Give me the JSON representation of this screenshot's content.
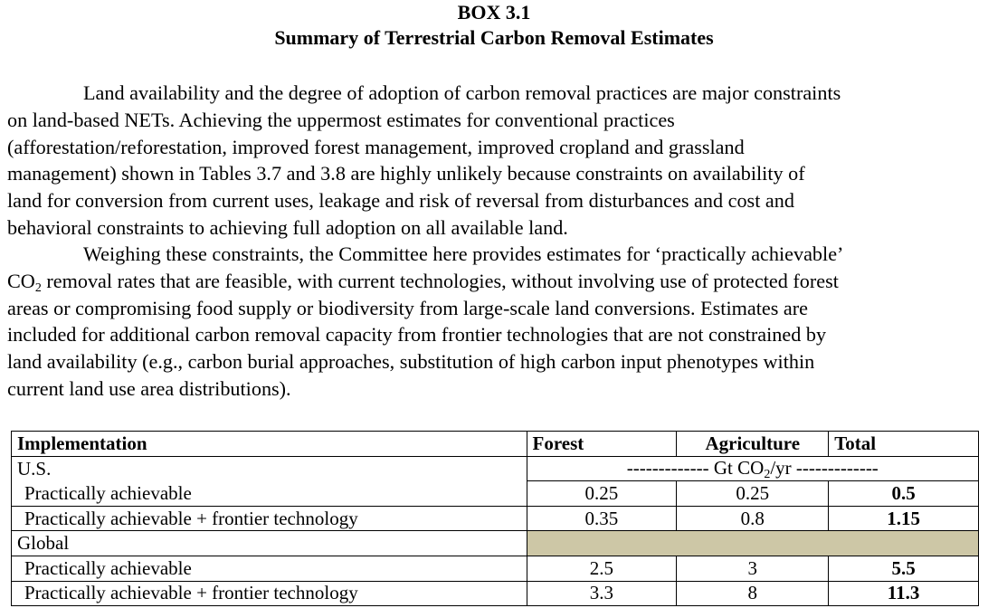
{
  "box": {
    "label": "BOX 3.1",
    "title": "Summary of Terrestrial Carbon Removal Estimates"
  },
  "paragraph1": {
    "lines": [
      "Land availability and the degree of adoption of carbon removal practices are major constraints",
      "on land-based NETs. Achieving the uppermost estimates for conventional practices",
      "(afforestation/reforestation, improved forest management, improved cropland and grassland",
      "management) shown in Tables 3.7 and 3.8 are highly unlikely because constraints on availability of",
      "land for conversion from current uses, leakage and risk of reversal from disturbances and cost and",
      "behavioral constraints to achieving full adoption on all available land."
    ]
  },
  "paragraph2": {
    "line1": "Weighing these constraints, the Committee here provides estimates for ‘practically achievable’",
    "line2_a": "CO",
    "line2_sub": "2",
    "line2_b": " removal rates that are feasible, with current technologies, without involving use of protected forest",
    "lines_rest": [
      "areas or compromising food supply or biodiversity from large-scale land conversions. Estimates are",
      "included for additional carbon removal capacity from frontier technologies that are not constrained by",
      "land availability (e.g., carbon burial approaches, substitution of high carbon input phenotypes within",
      "current land use area distributions)."
    ]
  },
  "table": {
    "headers": {
      "implementation": "Implementation",
      "forest": "Forest",
      "agriculture": "Agriculture",
      "total": "Total"
    },
    "units": {
      "prefix": "------------- Gt CO",
      "sub": "2",
      "suffix": "/yr -------------"
    },
    "us": {
      "label": "U.S.",
      "rows": [
        {
          "label": "Practically achievable",
          "forest": "0.25",
          "agriculture": "0.25",
          "total": "0.5"
        },
        {
          "label": "Practically achievable + frontier technology",
          "forest": "0.35",
          "agriculture": "0.8",
          "total": "1.15"
        }
      ]
    },
    "global": {
      "label": "Global",
      "rows": [
        {
          "label": "Practically achievable",
          "forest": "2.5",
          "agriculture": "3",
          "total": "5.5"
        },
        {
          "label": "Practically achievable + frontier technology",
          "forest": "3.3",
          "agriculture": "8",
          "total": "11.3"
        }
      ]
    },
    "shade_color": "#cdc7a6"
  }
}
